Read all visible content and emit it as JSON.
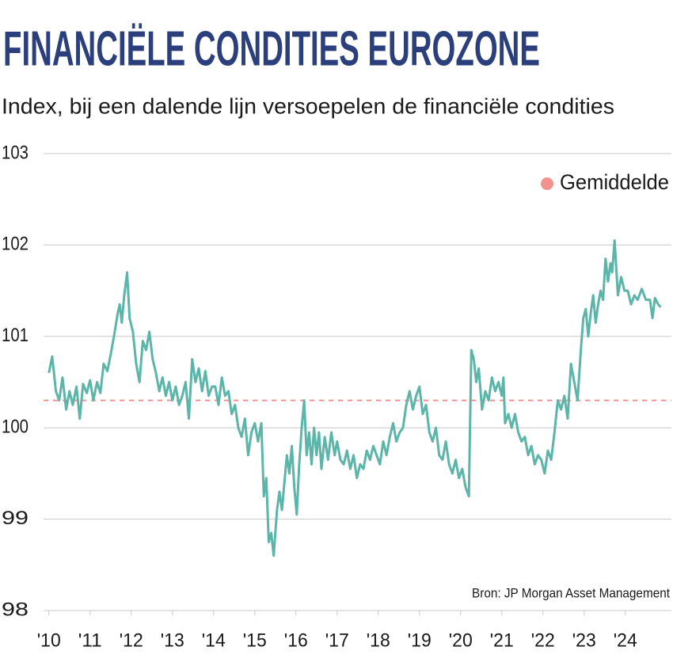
{
  "chart_data": {
    "type": "line",
    "title": "FINANCIËLE CONDITIES EUROZONE",
    "subtitle": "Index, bij een dalende lijn versoepelen de financiële condities",
    "source": "Bron: JP Morgan Asset Management",
    "reference_line": {
      "name": "Gemiddelde",
      "value": 100.3,
      "color": "#f2938f"
    },
    "xlim": [
      2009.87,
      2025.12
    ],
    "ylim": [
      98,
      103
    ],
    "yticks": [
      98,
      99,
      100,
      101,
      102,
      103
    ],
    "xticks": [
      {
        "value": 2010,
        "label": "'10"
      },
      {
        "value": 2011,
        "label": "'11"
      },
      {
        "value": 2012,
        "label": "'12"
      },
      {
        "value": 2013,
        "label": "'13"
      },
      {
        "value": 2014,
        "label": "'14"
      },
      {
        "value": 2015,
        "label": "'15"
      },
      {
        "value": 2016,
        "label": "'16"
      },
      {
        "value": 2017,
        "label": "'17"
      },
      {
        "value": 2018,
        "label": "'18"
      },
      {
        "value": 2019,
        "label": "'19"
      },
      {
        "value": 2020,
        "label": "'20"
      },
      {
        "value": 2021,
        "label": "'21"
      },
      {
        "value": 2022,
        "label": "'22"
      },
      {
        "value": 2023,
        "label": "'23"
      },
      {
        "value": 2024,
        "label": "'24"
      }
    ],
    "grid": true,
    "x": [
      2010.0,
      2010.08,
      2010.17,
      2010.25,
      2010.33,
      2010.42,
      2010.5,
      2010.58,
      2010.67,
      2010.75,
      2010.83,
      2010.92,
      2011.0,
      2011.08,
      2011.17,
      2011.25,
      2011.33,
      2011.42,
      2011.5,
      2011.58,
      2011.67,
      2011.72,
      2011.77,
      2011.83,
      2011.9,
      2011.96,
      2012.04,
      2012.12,
      2012.2,
      2012.28,
      2012.36,
      2012.44,
      2012.52,
      2012.6,
      2012.68,
      2012.76,
      2012.84,
      2012.92,
      2013.0,
      2013.08,
      2013.16,
      2013.24,
      2013.32,
      2013.4,
      2013.48,
      2013.56,
      2013.64,
      2013.72,
      2013.8,
      2013.88,
      2013.96,
      2014.04,
      2014.12,
      2014.2,
      2014.28,
      2014.36,
      2014.44,
      2014.52,
      2014.6,
      2014.68,
      2014.76,
      2014.84,
      2014.92,
      2015.0,
      2015.08,
      2015.16,
      2015.22,
      2015.28,
      2015.34,
      2015.4,
      2015.46,
      2015.54,
      2015.6,
      2015.66,
      2015.72,
      2015.78,
      2015.84,
      2015.9,
      2015.96,
      2016.02,
      2016.08,
      2016.14,
      2016.2,
      2016.26,
      2016.32,
      2016.38,
      2016.44,
      2016.5,
      2016.56,
      2016.62,
      2016.7,
      2016.78,
      2016.86,
      2016.94,
      2017.0,
      2017.08,
      2017.16,
      2017.24,
      2017.32,
      2017.4,
      2017.48,
      2017.56,
      2017.64,
      2017.72,
      2017.8,
      2017.88,
      2017.96,
      2018.04,
      2018.12,
      2018.2,
      2018.28,
      2018.36,
      2018.44,
      2018.52,
      2018.6,
      2018.68,
      2018.76,
      2018.84,
      2018.92,
      2019.0,
      2019.08,
      2019.16,
      2019.24,
      2019.32,
      2019.4,
      2019.48,
      2019.56,
      2019.64,
      2019.72,
      2019.8,
      2019.88,
      2019.96,
      2020.04,
      2020.12,
      2020.2,
      2020.26,
      2020.32,
      2020.38,
      2020.44,
      2020.52,
      2020.6,
      2020.68,
      2020.76,
      2020.84,
      2020.92,
      2021.0,
      2021.04,
      2021.08,
      2021.16,
      2021.24,
      2021.32,
      2021.4,
      2021.48,
      2021.56,
      2021.64,
      2021.72,
      2021.8,
      2021.88,
      2021.96,
      2022.04,
      2022.12,
      2022.2,
      2022.28,
      2022.36,
      2022.44,
      2022.52,
      2022.6,
      2022.68,
      2022.76,
      2022.84,
      2022.92,
      2022.98,
      2023.04,
      2023.1,
      2023.16,
      2023.22,
      2023.28,
      2023.34,
      2023.4,
      2023.46,
      2023.52,
      2023.58,
      2023.64,
      2023.68,
      2023.74,
      2023.82,
      2023.9,
      2023.98,
      2024.06,
      2024.14,
      2024.22,
      2024.3,
      2024.4,
      2024.5,
      2024.6,
      2024.66,
      2024.72,
      2024.8,
      2024.86
    ],
    "series": [
      {
        "color": "#5bb5a8",
        "values": [
          100.6,
          100.78,
          100.4,
          100.3,
          100.55,
          100.2,
          100.4,
          100.25,
          100.45,
          100.1,
          100.48,
          100.38,
          100.52,
          100.3,
          100.5,
          100.38,
          100.7,
          100.62,
          100.8,
          101.0,
          101.25,
          101.35,
          101.15,
          101.45,
          101.7,
          101.2,
          101.05,
          100.7,
          100.5,
          100.95,
          100.85,
          101.05,
          100.75,
          100.6,
          100.4,
          100.55,
          100.35,
          100.5,
          100.3,
          100.45,
          100.25,
          100.35,
          100.5,
          100.1,
          100.75,
          100.5,
          100.65,
          100.4,
          100.62,
          100.35,
          100.45,
          100.45,
          100.25,
          100.55,
          100.35,
          100.4,
          100.15,
          100.25,
          100.0,
          99.9,
          100.1,
          99.7,
          99.95,
          100.05,
          99.85,
          100.05,
          99.25,
          99.45,
          98.75,
          98.85,
          98.6,
          99.1,
          99.3,
          99.1,
          99.4,
          99.7,
          99.5,
          99.8,
          99.35,
          99.05,
          99.6,
          100.0,
          100.3,
          99.7,
          99.95,
          99.6,
          100.0,
          99.7,
          99.95,
          99.55,
          99.9,
          99.65,
          99.95,
          99.7,
          99.85,
          99.65,
          99.6,
          99.75,
          99.55,
          99.7,
          99.45,
          99.6,
          99.55,
          99.75,
          99.65,
          99.8,
          99.7,
          99.6,
          99.85,
          99.7,
          99.9,
          100.05,
          99.85,
          99.95,
          100.0,
          100.25,
          100.4,
          100.2,
          100.35,
          100.45,
          100.15,
          100.25,
          99.95,
          99.85,
          100.0,
          99.7,
          99.65,
          99.85,
          99.6,
          99.5,
          99.65,
          99.45,
          99.55,
          99.35,
          99.25,
          100.85,
          100.75,
          100.5,
          100.65,
          100.2,
          100.4,
          100.3,
          100.55,
          100.4,
          100.5,
          100.35,
          100.55,
          100.05,
          100.15,
          100.0,
          100.15,
          99.95,
          99.85,
          99.9,
          99.7,
          99.8,
          99.6,
          99.7,
          99.65,
          99.5,
          99.75,
          99.65,
          99.95,
          100.3,
          100.2,
          100.35,
          100.1,
          100.7,
          100.5,
          100.3,
          100.85,
          101.2,
          101.3,
          101.0,
          101.25,
          101.45,
          101.15,
          101.35,
          101.5,
          101.4,
          101.85,
          101.6,
          101.8,
          101.7,
          102.05,
          101.45,
          101.65,
          101.5,
          101.5,
          101.35,
          101.45,
          101.4,
          101.52,
          101.4,
          101.4,
          101.2,
          101.42,
          101.35,
          101.32
        ]
      }
    ]
  }
}
